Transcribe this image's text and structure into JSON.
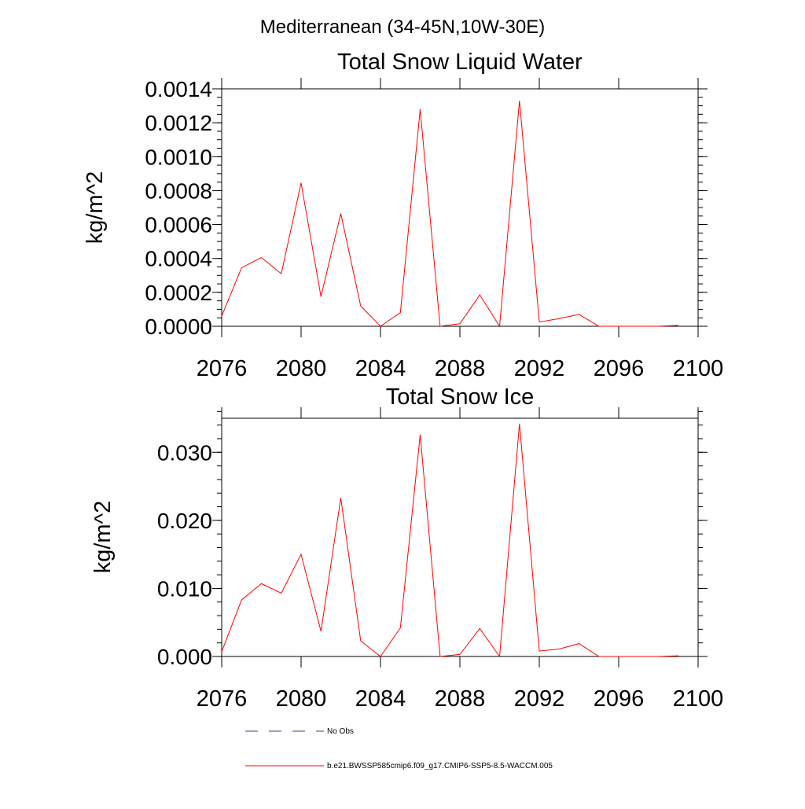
{
  "figure_title": "Mediterranean (34-45N,10W-30E)",
  "chart_data": [
    {
      "type": "line",
      "title": "Total Snow Liquid Water",
      "xlabel": "",
      "ylabel": "kg/m^2",
      "xlim": [
        2076,
        2100
      ],
      "ylim": [
        0,
        0.0014
      ],
      "xticks": [
        2076,
        2080,
        2084,
        2088,
        2092,
        2096,
        2100
      ],
      "xtick_labels": [
        "2076",
        "2080",
        "2084",
        "2088",
        "2092",
        "2096",
        "2100"
      ],
      "yticks": [
        0,
        0.0002,
        0.0004,
        0.0006,
        0.0008,
        0.001,
        0.0012,
        0.0014
      ],
      "ytick_labels": [
        "0.0000",
        "0.0002",
        "0.0004",
        "0.0006",
        "0.0008",
        "0.0010",
        "0.0012",
        "0.0014"
      ],
      "y_minor_step": 5e-05,
      "series": [
        {
          "name": "b.e21.BWSSP585cmip6.f09_g17.CMIP6-SSP5-8.5-WACCM.005",
          "color": "#ff0000",
          "x": [
            2076,
            2077,
            2078,
            2079,
            2080,
            2081,
            2082,
            2083,
            2084,
            2085,
            2086,
            2087,
            2088,
            2089,
            2090,
            2091,
            2092,
            2093,
            2094,
            2095,
            2096,
            2097,
            2098,
            2099
          ],
          "values": [
            6e-05,
            0.000345,
            0.000405,
            0.00031,
            0.000845,
            0.000175,
            0.000665,
            0.00012,
            0.0,
            8e-05,
            0.00128,
            0.0,
            1.5e-05,
            0.000185,
            0.0,
            0.00133,
            2.5e-05,
            4.5e-05,
            7e-05,
            0.0,
            0.0,
            0.0,
            0.0,
            5e-06
          ]
        }
      ]
    },
    {
      "type": "line",
      "title": "Total Snow Ice",
      "xlabel": "",
      "ylabel": "kg/m^2",
      "xlim": [
        2076,
        2100
      ],
      "ylim": [
        0,
        0.035
      ],
      "xticks": [
        2076,
        2080,
        2084,
        2088,
        2092,
        2096,
        2100
      ],
      "xtick_labels": [
        "2076",
        "2080",
        "2084",
        "2088",
        "2092",
        "2096",
        "2100"
      ],
      "yticks": [
        0,
        0.01,
        0.02,
        0.03
      ],
      "ytick_labels": [
        "0.000",
        "0.010",
        "0.020",
        "0.030"
      ],
      "y_minor_step": 0.002,
      "series": [
        {
          "name": "b.e21.BWSSP585cmip6.f09_g17.CMIP6-SSP5-8.5-WACCM.005",
          "color": "#ff0000",
          "x": [
            2076,
            2077,
            2078,
            2079,
            2080,
            2081,
            2082,
            2083,
            2084,
            2085,
            2086,
            2087,
            2088,
            2089,
            2090,
            2091,
            2092,
            2093,
            2094,
            2095,
            2096,
            2097,
            2098,
            2099
          ],
          "values": [
            0.0007,
            0.0083,
            0.0107,
            0.0093,
            0.015,
            0.0037,
            0.0233,
            0.0023,
            0.0,
            0.0042,
            0.0326,
            0.0,
            0.0003,
            0.0041,
            0.0,
            0.0342,
            0.0008,
            0.0011,
            0.0019,
            0.0,
            0.0,
            0.0,
            0.0,
            0.0001
          ]
        }
      ]
    }
  ],
  "legend": {
    "position": "bottom-left",
    "items": [
      {
        "label": "No Obs",
        "color": "#3c3c8c",
        "style": "dashed"
      },
      {
        "label": "b.e21.BWSSP585cmip6.f09_g17.CMIP6-SSP5-8.5-WACCM.005",
        "color": "#ff0000",
        "style": "solid"
      }
    ]
  }
}
